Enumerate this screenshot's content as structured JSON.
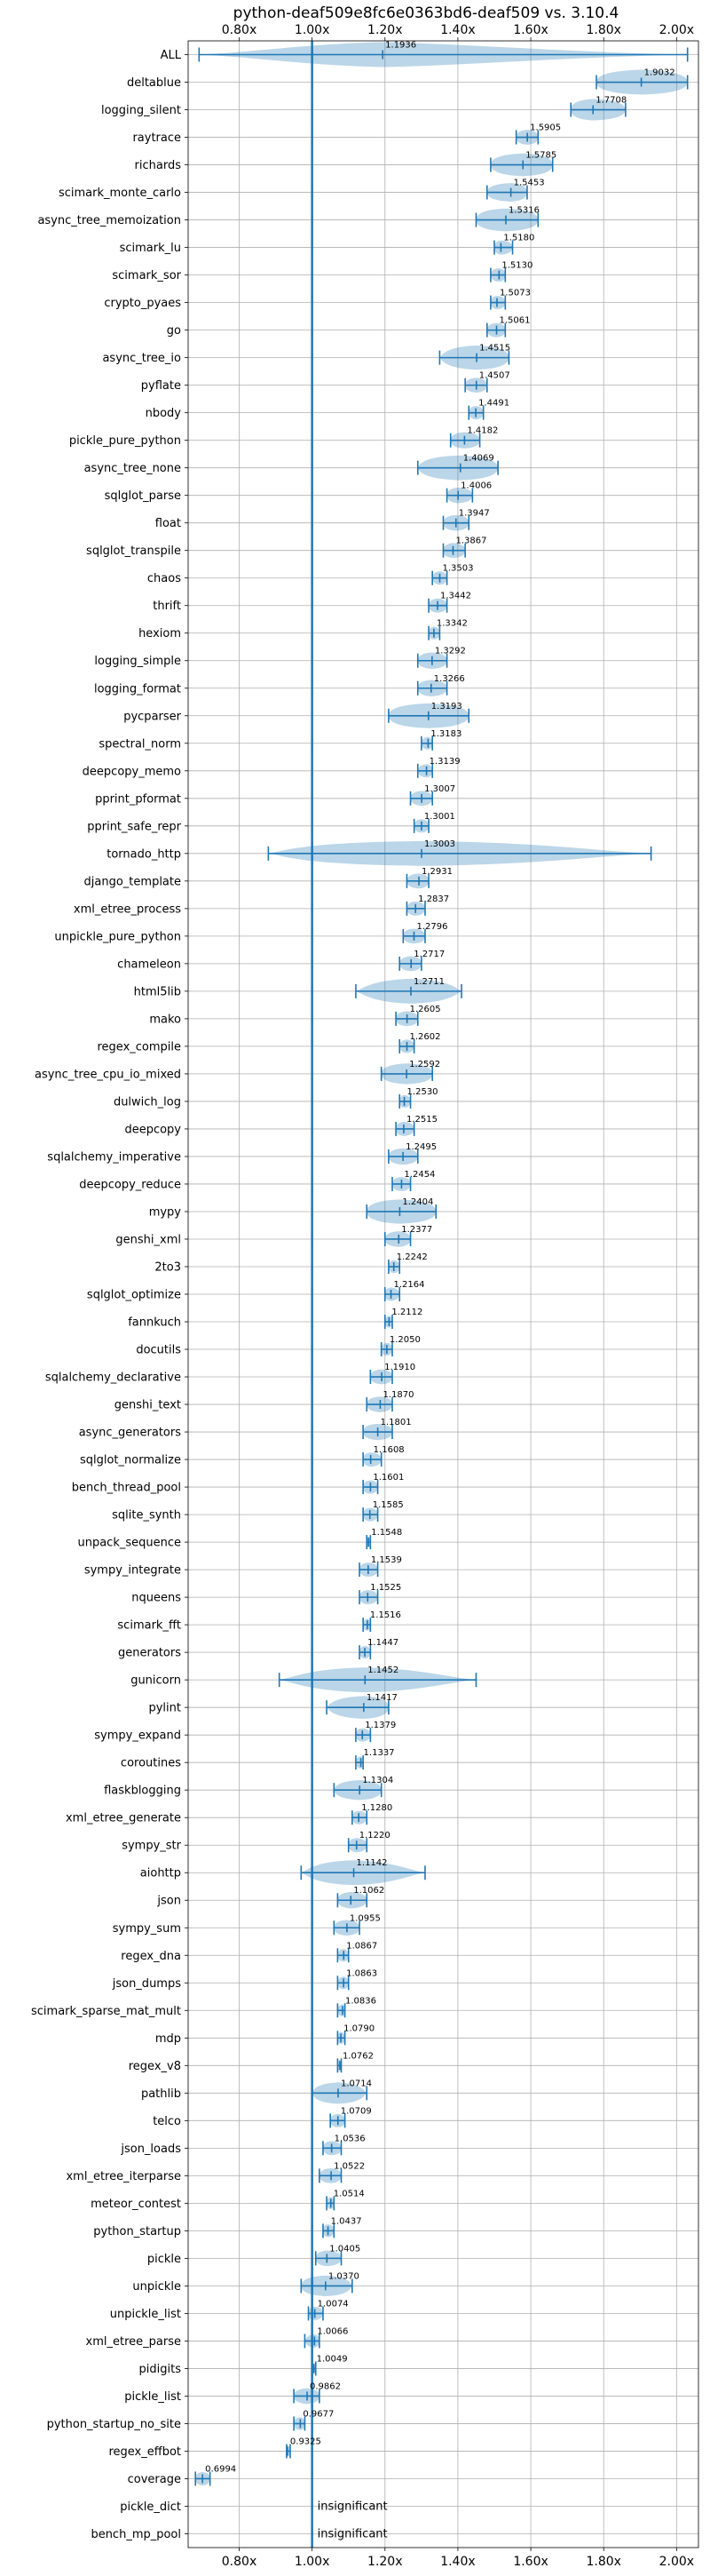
{
  "chart_data": {
    "type": "violin",
    "title": "python-deaf509e8fc6e0363bd6-deaf509 vs. 3.10.4",
    "xlim": [
      0.66,
      2.06
    ],
    "xticks": [
      0.8,
      1.0,
      1.2,
      1.4,
      1.6,
      1.8,
      2.0
    ],
    "xtick_labels": [
      "0.80x",
      "1.00x",
      "1.20x",
      "1.40x",
      "1.60x",
      "1.80x",
      "2.00x"
    ],
    "reference_line": 1.0,
    "grid": true,
    "rows": [
      {
        "name": "ALL",
        "value": 1.1936,
        "label": "1.1936",
        "min": 0.69,
        "max": 2.03,
        "spread": 0.09
      },
      {
        "name": "deltablue",
        "value": 1.9032,
        "label": "1.9032",
        "min": 1.78,
        "max": 2.03,
        "spread": 0.06
      },
      {
        "name": "logging_silent",
        "value": 1.7708,
        "label": "1.7708",
        "min": 1.71,
        "max": 1.86,
        "spread": 0.04
      },
      {
        "name": "raytrace",
        "value": 1.5905,
        "label": "1.5905",
        "min": 1.56,
        "max": 1.62,
        "spread": 0.03
      },
      {
        "name": "richards",
        "value": 1.5785,
        "label": "1.5785",
        "min": 1.49,
        "max": 1.66,
        "spread": 0.04
      },
      {
        "name": "scimark_monte_carlo",
        "value": 1.5453,
        "label": "1.5453",
        "min": 1.48,
        "max": 1.59,
        "spread": 0.03
      },
      {
        "name": "async_tree_memoization",
        "value": 1.5316,
        "label": "1.5316",
        "min": 1.45,
        "max": 1.62,
        "spread": 0.04
      },
      {
        "name": "scimark_lu",
        "value": 1.518,
        "label": "1.5180",
        "min": 1.5,
        "max": 1.55,
        "spread": 0.02
      },
      {
        "name": "scimark_sor",
        "value": 1.513,
        "label": "1.5130",
        "min": 1.49,
        "max": 1.53,
        "spread": 0.02
      },
      {
        "name": "crypto_pyaes",
        "value": 1.5073,
        "label": "1.5073",
        "min": 1.49,
        "max": 1.53,
        "spread": 0.02
      },
      {
        "name": "go",
        "value": 1.5061,
        "label": "1.5061",
        "min": 1.48,
        "max": 1.53,
        "spread": 0.02
      },
      {
        "name": "async_tree_io",
        "value": 1.4515,
        "label": "1.4515",
        "min": 1.35,
        "max": 1.54,
        "spread": 0.04
      },
      {
        "name": "pyflate",
        "value": 1.4507,
        "label": "1.4507",
        "min": 1.42,
        "max": 1.48,
        "spread": 0.02
      },
      {
        "name": "nbody",
        "value": 1.4491,
        "label": "1.4491",
        "min": 1.43,
        "max": 1.47,
        "spread": 0.02
      },
      {
        "name": "pickle_pure_python",
        "value": 1.4182,
        "label": "1.4182",
        "min": 1.38,
        "max": 1.46,
        "spread": 0.02
      },
      {
        "name": "async_tree_none",
        "value": 1.4069,
        "label": "1.4069",
        "min": 1.29,
        "max": 1.51,
        "spread": 0.05
      },
      {
        "name": "sqlglot_parse",
        "value": 1.4006,
        "label": "1.4006",
        "min": 1.37,
        "max": 1.44,
        "spread": 0.02
      },
      {
        "name": "float",
        "value": 1.3947,
        "label": "1.3947",
        "min": 1.36,
        "max": 1.43,
        "spread": 0.02
      },
      {
        "name": "sqlglot_transpile",
        "value": 1.3867,
        "label": "1.3867",
        "min": 1.36,
        "max": 1.42,
        "spread": 0.02
      },
      {
        "name": "chaos",
        "value": 1.3503,
        "label": "1.3503",
        "min": 1.33,
        "max": 1.37,
        "spread": 0.02
      },
      {
        "name": "thrift",
        "value": 1.3442,
        "label": "1.3442",
        "min": 1.32,
        "max": 1.37,
        "spread": 0.02
      },
      {
        "name": "hexiom",
        "value": 1.3342,
        "label": "1.3342",
        "min": 1.32,
        "max": 1.35,
        "spread": 0.01
      },
      {
        "name": "logging_simple",
        "value": 1.3292,
        "label": "1.3292",
        "min": 1.29,
        "max": 1.37,
        "spread": 0.02
      },
      {
        "name": "logging_format",
        "value": 1.3266,
        "label": "1.3266",
        "min": 1.29,
        "max": 1.37,
        "spread": 0.02
      },
      {
        "name": "pycparser",
        "value": 1.3193,
        "label": "1.3193",
        "min": 1.21,
        "max": 1.43,
        "spread": 0.05
      },
      {
        "name": "spectral_norm",
        "value": 1.3183,
        "label": "1.3183",
        "min": 1.3,
        "max": 1.33,
        "spread": 0.01
      },
      {
        "name": "deepcopy_memo",
        "value": 1.3139,
        "label": "1.3139",
        "min": 1.29,
        "max": 1.33,
        "spread": 0.01
      },
      {
        "name": "pprint_pformat",
        "value": 1.3007,
        "label": "1.3007",
        "min": 1.27,
        "max": 1.33,
        "spread": 0.02
      },
      {
        "name": "pprint_safe_repr",
        "value": 1.3001,
        "label": "1.3001",
        "min": 1.28,
        "max": 1.32,
        "spread": 0.02
      },
      {
        "name": "tornado_http",
        "value": 1.3003,
        "label": "1.3003",
        "min": 0.88,
        "max": 1.93,
        "spread": 0.15
      },
      {
        "name": "django_template",
        "value": 1.2931,
        "label": "1.2931",
        "min": 1.26,
        "max": 1.32,
        "spread": 0.02
      },
      {
        "name": "xml_etree_process",
        "value": 1.2837,
        "label": "1.2837",
        "min": 1.26,
        "max": 1.31,
        "spread": 0.02
      },
      {
        "name": "unpickle_pure_python",
        "value": 1.2796,
        "label": "1.2796",
        "min": 1.25,
        "max": 1.31,
        "spread": 0.02
      },
      {
        "name": "chameleon",
        "value": 1.2717,
        "label": "1.2717",
        "min": 1.24,
        "max": 1.3,
        "spread": 0.02
      },
      {
        "name": "html5lib",
        "value": 1.2711,
        "label": "1.2711",
        "min": 1.12,
        "max": 1.41,
        "spread": 0.05
      },
      {
        "name": "mako",
        "value": 1.2605,
        "label": "1.2605",
        "min": 1.23,
        "max": 1.29,
        "spread": 0.02
      },
      {
        "name": "regex_compile",
        "value": 1.2602,
        "label": "1.2602",
        "min": 1.24,
        "max": 1.28,
        "spread": 0.01
      },
      {
        "name": "async_tree_cpu_io_mixed",
        "value": 1.2592,
        "label": "1.2592",
        "min": 1.19,
        "max": 1.33,
        "spread": 0.04
      },
      {
        "name": "dulwich_log",
        "value": 1.253,
        "label": "1.2530",
        "min": 1.24,
        "max": 1.27,
        "spread": 0.01
      },
      {
        "name": "deepcopy",
        "value": 1.2515,
        "label": "1.2515",
        "min": 1.23,
        "max": 1.28,
        "spread": 0.02
      },
      {
        "name": "sqlalchemy_imperative",
        "value": 1.2495,
        "label": "1.2495",
        "min": 1.21,
        "max": 1.29,
        "spread": 0.02
      },
      {
        "name": "deepcopy_reduce",
        "value": 1.2454,
        "label": "1.2454",
        "min": 1.22,
        "max": 1.27,
        "spread": 0.02
      },
      {
        "name": "mypy",
        "value": 1.2404,
        "label": "1.2404",
        "min": 1.15,
        "max": 1.34,
        "spread": 0.05
      },
      {
        "name": "genshi_xml",
        "value": 1.2377,
        "label": "1.2377",
        "min": 1.2,
        "max": 1.27,
        "spread": 0.02
      },
      {
        "name": "2to3",
        "value": 1.2242,
        "label": "1.2242",
        "min": 1.21,
        "max": 1.24,
        "spread": 0.01
      },
      {
        "name": "sqlglot_optimize",
        "value": 1.2164,
        "label": "1.2164",
        "min": 1.2,
        "max": 1.24,
        "spread": 0.01
      },
      {
        "name": "fannkuch",
        "value": 1.2112,
        "label": "1.2112",
        "min": 1.2,
        "max": 1.22,
        "spread": 0.01
      },
      {
        "name": "docutils",
        "value": 1.205,
        "label": "1.2050",
        "min": 1.19,
        "max": 1.22,
        "spread": 0.01
      },
      {
        "name": "sqlalchemy_declarative",
        "value": 1.191,
        "label": "1.1910",
        "min": 1.16,
        "max": 1.22,
        "spread": 0.02
      },
      {
        "name": "genshi_text",
        "value": 1.187,
        "label": "1.1870",
        "min": 1.15,
        "max": 1.22,
        "spread": 0.02
      },
      {
        "name": "async_generators",
        "value": 1.1801,
        "label": "1.1801",
        "min": 1.14,
        "max": 1.22,
        "spread": 0.02
      },
      {
        "name": "sqlglot_normalize",
        "value": 1.1608,
        "label": "1.1608",
        "min": 1.14,
        "max": 1.19,
        "spread": 0.02
      },
      {
        "name": "bench_thread_pool",
        "value": 1.1601,
        "label": "1.1601",
        "min": 1.14,
        "max": 1.18,
        "spread": 0.01
      },
      {
        "name": "sqlite_synth",
        "value": 1.1585,
        "label": "1.1585",
        "min": 1.14,
        "max": 1.18,
        "spread": 0.01
      },
      {
        "name": "unpack_sequence",
        "value": 1.1548,
        "label": "1.1548",
        "min": 1.15,
        "max": 1.16,
        "spread": 0.01
      },
      {
        "name": "sympy_integrate",
        "value": 1.1539,
        "label": "1.1539",
        "min": 1.13,
        "max": 1.18,
        "spread": 0.02
      },
      {
        "name": "nqueens",
        "value": 1.1525,
        "label": "1.1525",
        "min": 1.13,
        "max": 1.18,
        "spread": 0.02
      },
      {
        "name": "scimark_fft",
        "value": 1.1516,
        "label": "1.1516",
        "min": 1.14,
        "max": 1.16,
        "spread": 0.01
      },
      {
        "name": "generators",
        "value": 1.1447,
        "label": "1.1447",
        "min": 1.13,
        "max": 1.16,
        "spread": 0.01
      },
      {
        "name": "gunicorn",
        "value": 1.1452,
        "label": "1.1452",
        "min": 0.91,
        "max": 1.45,
        "spread": 0.07
      },
      {
        "name": "pylint",
        "value": 1.1417,
        "label": "1.1417",
        "min": 1.04,
        "max": 1.21,
        "spread": 0.04
      },
      {
        "name": "sympy_expand",
        "value": 1.1379,
        "label": "1.1379",
        "min": 1.12,
        "max": 1.16,
        "spread": 0.02
      },
      {
        "name": "coroutines",
        "value": 1.1337,
        "label": "1.1337",
        "min": 1.12,
        "max": 1.14,
        "spread": 0.01
      },
      {
        "name": "flaskblogging",
        "value": 1.1304,
        "label": "1.1304",
        "min": 1.06,
        "max": 1.19,
        "spread": 0.03
      },
      {
        "name": "xml_etree_generate",
        "value": 1.128,
        "label": "1.1280",
        "min": 1.11,
        "max": 1.15,
        "spread": 0.01
      },
      {
        "name": "sympy_str",
        "value": 1.122,
        "label": "1.1220",
        "min": 1.1,
        "max": 1.15,
        "spread": 0.02
      },
      {
        "name": "aiohttp",
        "value": 1.1142,
        "label": "1.1142",
        "min": 0.97,
        "max": 1.31,
        "spread": 0.05
      },
      {
        "name": "json",
        "value": 1.1062,
        "label": "1.1062",
        "min": 1.07,
        "max": 1.15,
        "spread": 0.02
      },
      {
        "name": "sympy_sum",
        "value": 1.0955,
        "label": "1.0955",
        "min": 1.06,
        "max": 1.13,
        "spread": 0.02
      },
      {
        "name": "regex_dna",
        "value": 1.0867,
        "label": "1.0867",
        "min": 1.07,
        "max": 1.1,
        "spread": 0.01
      },
      {
        "name": "json_dumps",
        "value": 1.0863,
        "label": "1.0863",
        "min": 1.07,
        "max": 1.1,
        "spread": 0.01
      },
      {
        "name": "scimark_sparse_mat_mult",
        "value": 1.0836,
        "label": "1.0836",
        "min": 1.07,
        "max": 1.09,
        "spread": 0.01
      },
      {
        "name": "mdp",
        "value": 1.079,
        "label": "1.0790",
        "min": 1.07,
        "max": 1.09,
        "spread": 0.01
      },
      {
        "name": "regex_v8",
        "value": 1.0762,
        "label": "1.0762",
        "min": 1.07,
        "max": 1.08,
        "spread": 0.01
      },
      {
        "name": "pathlib",
        "value": 1.0714,
        "label": "1.0714",
        "min": 1.0,
        "max": 1.15,
        "spread": 0.03
      },
      {
        "name": "telco",
        "value": 1.0709,
        "label": "1.0709",
        "min": 1.05,
        "max": 1.09,
        "spread": 0.01
      },
      {
        "name": "json_loads",
        "value": 1.0536,
        "label": "1.0536",
        "min": 1.03,
        "max": 1.08,
        "spread": 0.02
      },
      {
        "name": "xml_etree_iterparse",
        "value": 1.0522,
        "label": "1.0522",
        "min": 1.02,
        "max": 1.08,
        "spread": 0.02
      },
      {
        "name": "meteor_contest",
        "value": 1.0514,
        "label": "1.0514",
        "min": 1.04,
        "max": 1.06,
        "spread": 0.01
      },
      {
        "name": "python_startup",
        "value": 1.0437,
        "label": "1.0437",
        "min": 1.03,
        "max": 1.06,
        "spread": 0.01
      },
      {
        "name": "pickle",
        "value": 1.0405,
        "label": "1.0405",
        "min": 1.01,
        "max": 1.08,
        "spread": 0.02
      },
      {
        "name": "unpickle",
        "value": 1.037,
        "label": "1.0370",
        "min": 0.97,
        "max": 1.11,
        "spread": 0.03
      },
      {
        "name": "unpickle_list",
        "value": 1.0074,
        "label": "1.0074",
        "min": 0.99,
        "max": 1.03,
        "spread": 0.01
      },
      {
        "name": "xml_etree_parse",
        "value": 1.0066,
        "label": "1.0066",
        "min": 0.98,
        "max": 1.02,
        "spread": 0.01
      },
      {
        "name": "pidigits",
        "value": 1.0049,
        "label": "1.0049",
        "min": 1.0,
        "max": 1.01,
        "spread": 0.01
      },
      {
        "name": "pickle_list",
        "value": 0.9862,
        "label": "0.9862",
        "min": 0.95,
        "max": 1.02,
        "spread": 0.02
      },
      {
        "name": "python_startup_no_site",
        "value": 0.9677,
        "label": "0.9677",
        "min": 0.95,
        "max": 0.98,
        "spread": 0.01
      },
      {
        "name": "regex_effbot",
        "value": 0.9325,
        "label": "0.9325",
        "min": 0.93,
        "max": 0.94,
        "spread": 0.005
      },
      {
        "name": "coverage",
        "value": 0.6994,
        "label": "0.6994",
        "min": 0.68,
        "max": 0.72,
        "spread": 0.01
      },
      {
        "name": "pickle_dict",
        "value": null,
        "label": "insignificant"
      },
      {
        "name": "bench_mp_pool",
        "value": null,
        "label": "insignificant"
      }
    ]
  }
}
